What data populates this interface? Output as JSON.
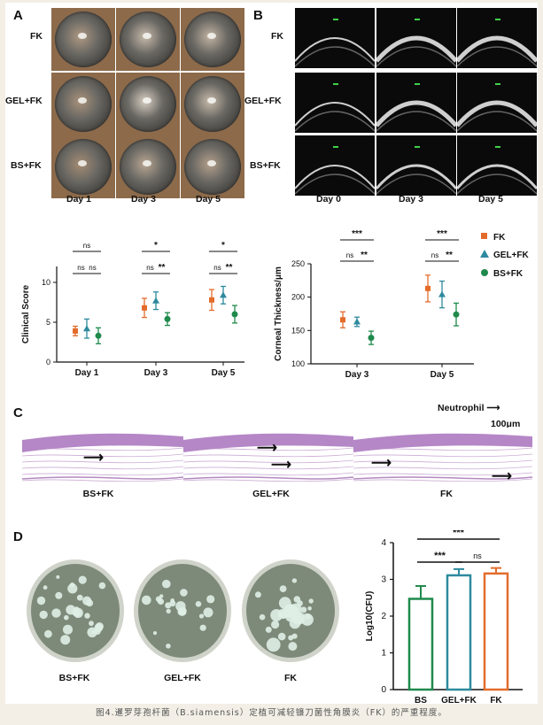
{
  "panel_labels": {
    "a": "A",
    "b": "B",
    "c": "C",
    "d": "D"
  },
  "panel_a": {
    "rows": [
      "FK",
      "GEL+FK",
      "BS+FK"
    ],
    "cols": [
      "Day 1",
      "Day 3",
      "Day 5"
    ]
  },
  "panel_b": {
    "rows": [
      "FK",
      "GEL+FK",
      "BS+FK"
    ],
    "cols": [
      "Day 0",
      "Day 3",
      "Day 5"
    ]
  },
  "panel_c": {
    "legend_text": "Neutrophil",
    "scalebar_text": "100μm",
    "labels": [
      "BS+FK",
      "GEL+FK",
      "FK"
    ]
  },
  "panel_d": {
    "labels": [
      "BS+FK",
      "GEL+FK",
      "FK"
    ]
  },
  "colors": {
    "FK": "#e36c2b",
    "GEL+FK": "#2e8a9e",
    "BS+FK": "#1f8a4c"
  },
  "chart_data": [
    {
      "type": "scatter",
      "ylabel": "Clinical Score",
      "categories": [
        "Day 1",
        "Day 3",
        "Day 5"
      ],
      "ylim": [
        0,
        12
      ],
      "yticks": [
        "0",
        "5",
        "10"
      ],
      "series": [
        {
          "name": "FK",
          "marker": "square",
          "values": [
            3.9,
            6.8,
            7.8
          ],
          "err": [
            0.6,
            1.2,
            1.3
          ]
        },
        {
          "name": "GEL+FK",
          "marker": "triangle",
          "values": [
            4.2,
            7.7,
            8.4
          ],
          "err": [
            1.2,
            1.1,
            1.1
          ]
        },
        {
          "name": "BS+FK",
          "marker": "circle",
          "values": [
            3.3,
            5.4,
            6.0
          ],
          "err": [
            1.0,
            0.8,
            1.1
          ]
        }
      ],
      "significance": [
        {
          "group": 0,
          "pairs": [
            [
              "FK",
              "GEL+FK",
              "ns"
            ],
            [
              "GEL+FK",
              "BS+FK",
              "ns"
            ],
            [
              "FK",
              "BS+FK",
              "ns"
            ]
          ]
        },
        {
          "group": 1,
          "pairs": [
            [
              "FK",
              "GEL+FK",
              "ns"
            ],
            [
              "GEL+FK",
              "BS+FK",
              "**"
            ],
            [
              "FK",
              "BS+FK",
              "*"
            ]
          ]
        },
        {
          "group": 2,
          "pairs": [
            [
              "FK",
              "GEL+FK",
              "ns"
            ],
            [
              "GEL+FK",
              "BS+FK",
              "**"
            ],
            [
              "FK",
              "BS+FK",
              "*"
            ]
          ]
        }
      ]
    },
    {
      "type": "scatter",
      "ylabel": "Corneal Thickness/μm",
      "categories": [
        "Day 3",
        "Day 5"
      ],
      "ylim": [
        100,
        250
      ],
      "yticks": [
        "100",
        "150",
        "200",
        "250"
      ],
      "series": [
        {
          "name": "FK",
          "marker": "square",
          "values": [
            166,
            213
          ],
          "err": [
            12,
            20
          ]
        },
        {
          "name": "GEL+FK",
          "marker": "triangle",
          "values": [
            163,
            204
          ],
          "err": [
            7,
            20
          ]
        },
        {
          "name": "BS+FK",
          "marker": "circle",
          "values": [
            139,
            174
          ],
          "err": [
            10,
            17
          ]
        }
      ],
      "significance": [
        {
          "group": 0,
          "pairs": [
            [
              "FK",
              "GEL+FK",
              "ns"
            ],
            [
              "GEL+FK",
              "BS+FK",
              "**"
            ],
            [
              "FK",
              "BS+FK",
              "***"
            ]
          ]
        },
        {
          "group": 1,
          "pairs": [
            [
              "FK",
              "GEL+FK",
              "ns"
            ],
            [
              "GEL+FK",
              "BS+FK",
              "**"
            ],
            [
              "FK",
              "BS+FK",
              "***"
            ]
          ]
        }
      ],
      "legend": [
        "FK",
        "GEL+FK",
        "BS+FK"
      ]
    },
    {
      "type": "bar",
      "ylabel": "Log10(CFU)",
      "categories": [
        "BS",
        "GEL+FK",
        "FK"
      ],
      "values": [
        2.47,
        3.11,
        3.16
      ],
      "err": [
        0.35,
        0.17,
        0.15
      ],
      "ylim": [
        0,
        4
      ],
      "yticks": [
        "0",
        "1",
        "2",
        "3",
        "4"
      ],
      "significance": [
        [
          "BS",
          "GEL+FK",
          "***"
        ],
        [
          "GEL+FK",
          "FK",
          "ns"
        ],
        [
          "BS",
          "FK",
          "***"
        ]
      ]
    }
  ],
  "caption": "图4.暹罗芽孢杆菌（B.siamensis）定植可减轻镰刀菌性角膜炎（FK）的严重程度。"
}
